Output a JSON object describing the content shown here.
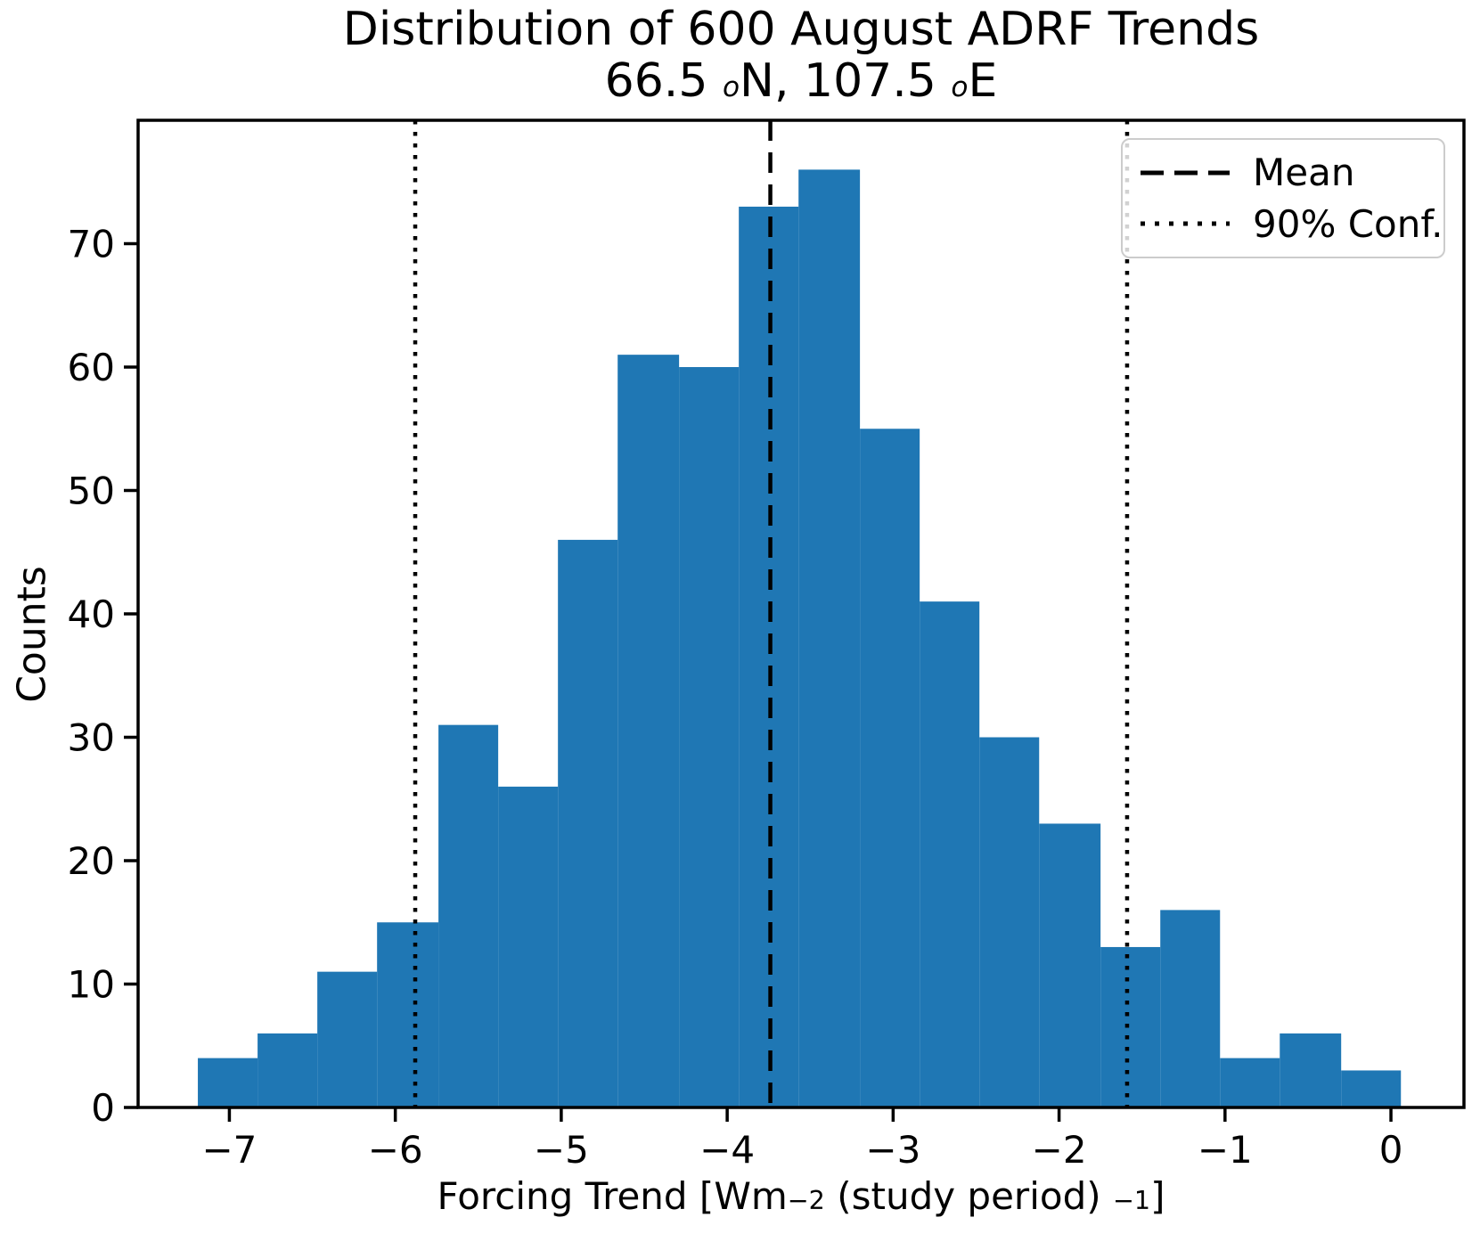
{
  "figure": {
    "title_line1": "Distribution of 600 August ADRF Trends",
    "title_line2": {
      "part1": "66.5 ",
      "sup1": "o",
      "part2": "N, 107.5 ",
      "sup2": "o",
      "part3": "E"
    },
    "xlabel_parts": {
      "part1": "Forcing Trend [Wm",
      "sup1": "−2",
      "part2": " (study period) ",
      "sup2": "−1",
      "part3": "]"
    },
    "ylabel": "Counts"
  },
  "legend": {
    "items": [
      {
        "label": "Mean",
        "style": "dashed"
      },
      {
        "label": "90% Conf.",
        "style": "dotted"
      }
    ]
  },
  "chart_data": {
    "type": "bar",
    "subtype": "histogram",
    "title": "Distribution of 600 August ADRF Trends",
    "subtitle": "66.5 °N, 107.5 °E",
    "xlabel": "Forcing Trend [Wm⁻² (study period) ⁻¹]",
    "ylabel": "Counts",
    "n_samples": 600,
    "bin_edges": [
      -7.19,
      -6.83,
      -6.47,
      -6.11,
      -5.74,
      -5.38,
      -5.02,
      -4.66,
      -4.29,
      -3.93,
      -3.57,
      -3.2,
      -2.84,
      -2.48,
      -2.12,
      -1.75,
      -1.39,
      -1.03,
      -0.67,
      -0.3,
      0.06
    ],
    "counts": [
      4,
      6,
      11,
      15,
      31,
      26,
      46,
      61,
      60,
      73,
      76,
      55,
      41,
      30,
      23,
      13,
      16,
      4,
      6,
      3
    ],
    "mean": -3.74,
    "conf90": [
      -5.88,
      -1.59
    ],
    "xticks": [
      -7,
      -6,
      -5,
      -4,
      -3,
      -2,
      -1,
      0
    ],
    "yticks": [
      0,
      10,
      20,
      30,
      40,
      50,
      60,
      70
    ],
    "xlim": [
      -7.55,
      0.44
    ],
    "ylim": [
      0,
      80
    ],
    "grid": false,
    "legend_position": "upper right",
    "bar_color": "#1f77b4",
    "line_color": "#000000",
    "axis_color": "#000000"
  }
}
